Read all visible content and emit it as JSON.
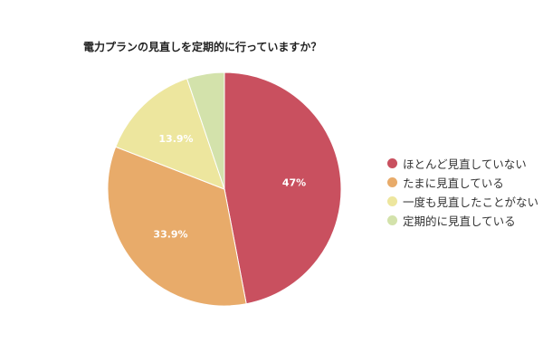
{
  "chart_data": {
    "type": "pie",
    "title": "電力プランの見直しを定期的に行っていますか？",
    "categories": [
      "ほとんど見直していない",
      "たまに見直している",
      "一度も見直したことがない",
      "定期的に見直している"
    ],
    "values": [
      47,
      33.9,
      13.9,
      5.2
    ],
    "data_labels": [
      "47%",
      "33.9%",
      "13.9%",
      ""
    ],
    "colors": [
      "#c9505f",
      "#e8ab6a",
      "#ede69e",
      "#d3e2ab"
    ],
    "legend_position": "right"
  }
}
